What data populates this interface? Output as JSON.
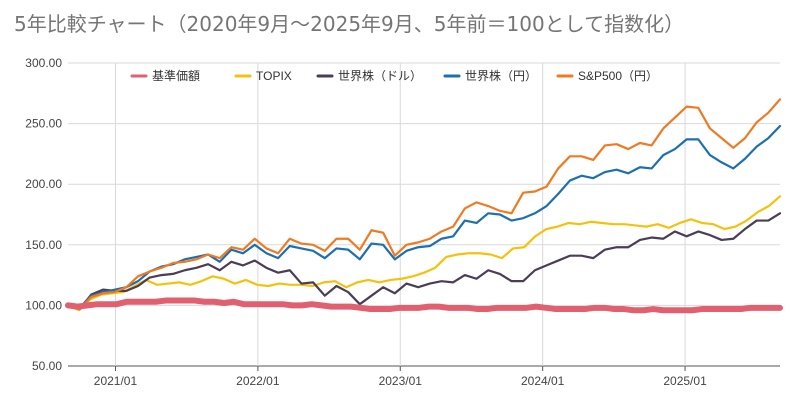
{
  "chart_data": {
    "type": "line",
    "title": "5年比較チャート（2020年9月～2025年9月、5年前＝100として指数化）",
    "xlabel": "",
    "ylabel": "",
    "ylim": [
      50,
      300
    ],
    "y_ticks": [
      "50.00",
      "100.00",
      "150.00",
      "200.00",
      "250.00",
      "300.00"
    ],
    "x_ticks": [
      "2021/01",
      "2022/01",
      "2023/01",
      "2024/01",
      "2025/01"
    ],
    "x_start": "2020/09",
    "x_end": "2025/09",
    "grid": true,
    "legend_position": "top",
    "series": [
      {
        "name": "基準価額",
        "color": "#e06070",
        "values": [
          100,
          99,
          100,
          101,
          101,
          101,
          103,
          103,
          103,
          103,
          104,
          104,
          104,
          104,
          103,
          103,
          102,
          103,
          101,
          101,
          101,
          101,
          101,
          100,
          100,
          101,
          100,
          99,
          99,
          99,
          98,
          97,
          97,
          97,
          98,
          98,
          98,
          99,
          99,
          98,
          98,
          98,
          97,
          97,
          98,
          98,
          98,
          98,
          99,
          98,
          97,
          97,
          97,
          97,
          98,
          98,
          97,
          97,
          96,
          96,
          97,
          96,
          96,
          96,
          96,
          97,
          97,
          97,
          97,
          97,
          98,
          98,
          98,
          98
        ]
      },
      {
        "name": "TOPIX",
        "color": "#f4c20d",
        "values": [
          100,
          96,
          105,
          109,
          110,
          111,
          116,
          121,
          117,
          118,
          119,
          117,
          120,
          124,
          122,
          118,
          121,
          117,
          116,
          118,
          117,
          117,
          116,
          119,
          120,
          115,
          119,
          121,
          119,
          121,
          122,
          124,
          127,
          131,
          140,
          142,
          143,
          143,
          142,
          139,
          147,
          148,
          157,
          163,
          165,
          168,
          167,
          169,
          168,
          167,
          167,
          166,
          165,
          167,
          164,
          168,
          171,
          168,
          167,
          163,
          165,
          170,
          177,
          182,
          190
        ]
      },
      {
        "name": "世界株（ドル）",
        "color": "#4a3d55",
        "values": [
          100,
          97,
          109,
          113,
          112,
          112,
          116,
          123,
          125,
          126,
          129,
          131,
          134,
          129,
          136,
          133,
          137,
          131,
          127,
          129,
          118,
          119,
          108,
          116,
          111,
          101,
          108,
          115,
          110,
          118,
          115,
          118,
          120,
          119,
          125,
          122,
          129,
          126,
          120,
          120,
          129,
          133,
          137,
          141,
          141,
          139,
          146,
          148,
          148,
          154,
          156,
          155,
          161,
          157,
          161,
          158,
          154,
          155,
          163,
          170,
          170,
          176
        ]
      },
      {
        "name": "世界株（円）",
        "color": "#1c6fb0",
        "values": [
          100,
          98,
          108,
          111,
          113,
          115,
          120,
          128,
          132,
          134,
          138,
          140,
          142,
          136,
          146,
          143,
          150,
          143,
          139,
          149,
          147,
          145,
          139,
          147,
          146,
          138,
          151,
          150,
          138,
          145,
          148,
          149,
          155,
          157,
          170,
          168,
          176,
          175,
          170,
          172,
          176,
          182,
          192,
          203,
          207,
          205,
          210,
          212,
          209,
          214,
          213,
          224,
          229,
          237,
          237,
          224,
          218,
          213,
          221,
          231,
          238,
          248
        ]
      },
      {
        "name": "S&P500（円）",
        "color": "#f07a22",
        "values": [
          100,
          97,
          107,
          110,
          111,
          115,
          124,
          128,
          131,
          135,
          136,
          138,
          142,
          139,
          148,
          146,
          155,
          147,
          143,
          155,
          151,
          150,
          145,
          155,
          155,
          146,
          162,
          160,
          141,
          150,
          152,
          155,
          161,
          165,
          180,
          185,
          182,
          178,
          176,
          193,
          194,
          198,
          213,
          223,
          223,
          220,
          232,
          233,
          229,
          234,
          232,
          246,
          255,
          264,
          263,
          246,
          238,
          230,
          238,
          251,
          259,
          270
        ]
      }
    ]
  }
}
